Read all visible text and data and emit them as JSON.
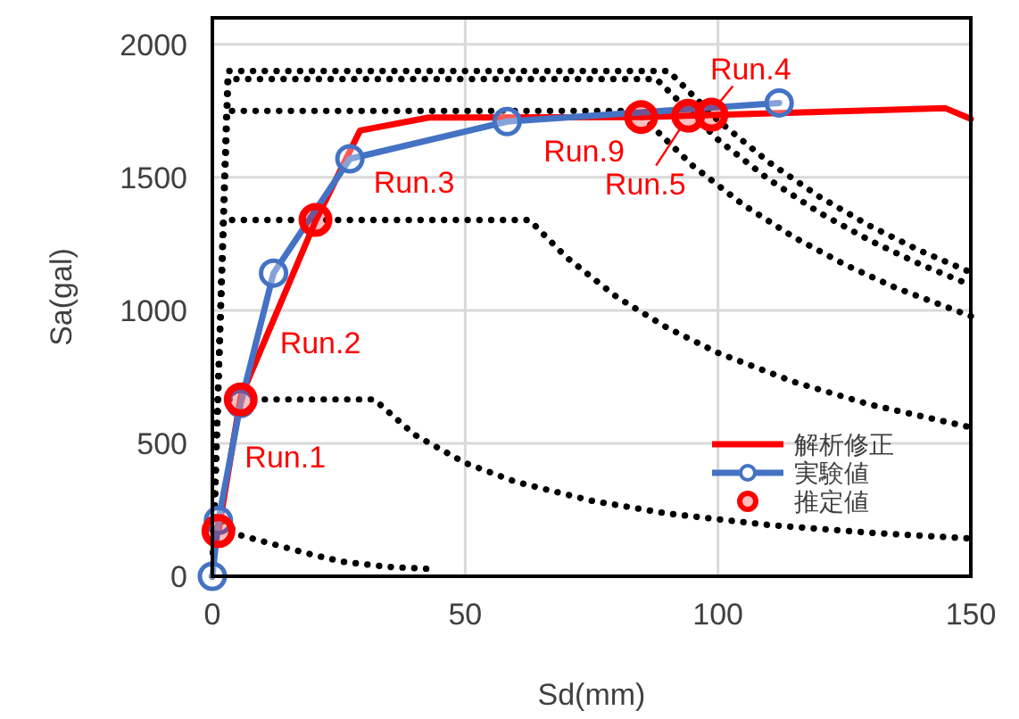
{
  "chart_data": {
    "type": "line",
    "xlabel": "Sd(mm)",
    "ylabel": "Sa(gal)",
    "xlim": [
      0,
      150
    ],
    "ylim": [
      0,
      2100
    ],
    "xticks": [
      0,
      50,
      100,
      150
    ],
    "yticks": [
      0,
      500,
      1000,
      1500,
      2000
    ],
    "grid": true,
    "legend": "bottom right",
    "series": [
      {
        "type": "line",
        "color": "#000000",
        "line_style": "dotted",
        "marker": "none",
        "x": [
          0,
          3.2,
          90.2,
          100,
          110,
          120,
          130,
          140,
          150
        ],
        "values": [
          0,
          1900,
          1900,
          1714,
          1558,
          1428,
          1318,
          1224,
          1143
        ]
      },
      {
        "type": "line",
        "color": "#000000",
        "line_style": "dotted",
        "marker": "none",
        "x": [
          0,
          3,
          87.8,
          100,
          110,
          120,
          130,
          140,
          150
        ],
        "values": [
          0,
          1870,
          1870,
          1642,
          1493,
          1368,
          1263,
          1173,
          1095
        ]
      },
      {
        "type": "line",
        "color": "#000000",
        "line_style": "dotted",
        "marker": "none",
        "x": [
          0,
          2.8,
          83.8,
          95,
          105,
          115,
          125,
          135,
          150
        ],
        "values": [
          0,
          1750,
          1750,
          1544,
          1397,
          1275,
          1173,
          1086,
          978
        ]
      },
      {
        "type": "line",
        "color": "#000000",
        "line_style": "dotted",
        "marker": "none",
        "x": [
          0,
          2.2,
          62.7,
          70,
          80,
          90,
          100,
          115,
          130,
          150
        ],
        "values": [
          0,
          1340,
          1340,
          1200,
          1050,
          934,
          840,
          731,
          646,
          560
        ]
      },
      {
        "type": "line",
        "color": "#000000",
        "line_style": "dotted",
        "marker": "none",
        "x": [
          0,
          1.1,
          32,
          40,
          50,
          60,
          75,
          90,
          110,
          130,
          150
        ],
        "values": [
          0,
          665,
          665,
          532,
          426,
          355,
          284,
          236,
          193,
          164,
          142
        ]
      },
      {
        "type": "line",
        "color": "#000000",
        "line_style": "dotted",
        "marker": "none",
        "x": [
          0,
          0.6,
          5.6,
          12,
          20,
          26,
          35,
          44
        ],
        "values": [
          0,
          230,
          154,
          121,
          80,
          54,
          35,
          27
        ]
      },
      {
        "name": "解析修正",
        "color": "#ff0000",
        "line_style": "solid",
        "marker": "none",
        "x": [
          1.2,
          5.6,
          20.4,
          29.2,
          42.8,
          85,
          145,
          150
        ],
        "values": [
          170,
          673,
          1336,
          1676,
          1725,
          1727,
          1760,
          1720
        ]
      },
      {
        "name": "実験値",
        "color": "#4472c4",
        "line_style": "solid",
        "marker": "circle",
        "x": [
          0,
          1.2,
          5.6,
          12.1,
          27.2,
          58.3,
          112.1
        ],
        "values": [
          0,
          210,
          650,
          1140,
          1570,
          1710,
          1780
        ]
      },
      {
        "type": "scatter",
        "name": "推定値",
        "color": "#ff0000",
        "marker": "circle",
        "x": [
          1.2,
          5.6,
          20.4,
          84.8,
          94.1,
          98.7
        ],
        "values": [
          170,
          665,
          1340,
          1727,
          1732,
          1736
        ]
      }
    ],
    "annotations": [
      {
        "text": "Run.1",
        "x": 5.6,
        "y": 665
      },
      {
        "text": "Run.2",
        "x": 9,
        "y": 825
      },
      {
        "text": "Run.3",
        "x": 27.2,
        "y": 1570
      },
      {
        "text": "Run.9",
        "x": 84.8,
        "y": 1727
      },
      {
        "text": "Run.5",
        "x": 94.1,
        "y": 1732
      },
      {
        "text": "Run.4",
        "x": 98.7,
        "y": 1736
      }
    ]
  }
}
